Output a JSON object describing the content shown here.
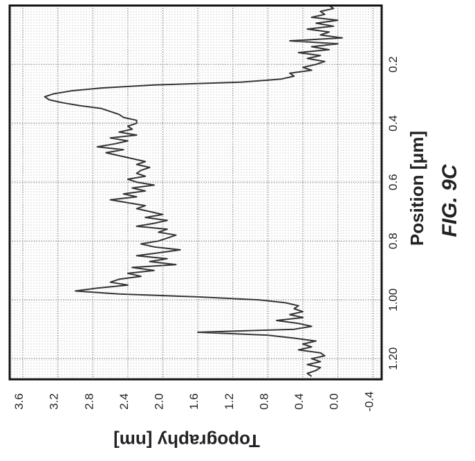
{
  "chart_data": {
    "type": "line",
    "orientation": "rotated-90-clockwise",
    "xlabel": "Position [μm]",
    "ylabel": "Topography [nm]",
    "figure_label": "FIG. 9C",
    "xlim": [
      0.0,
      1.27
    ],
    "ylim": [
      -0.5,
      3.75
    ],
    "x_ticks": [
      0.2,
      0.4,
      0.6,
      0.8,
      1.0,
      1.2
    ],
    "x_tick_labels": [
      "0.2",
      "0.4",
      "0.6",
      "0.8",
      "1.00",
      "1.20"
    ],
    "y_ticks": [
      -0.4,
      0.0,
      0.4,
      0.8,
      1.2,
      1.6,
      2.0,
      2.4,
      2.8,
      3.2,
      3.6
    ],
    "y_tick_labels": [
      "-0.4",
      "0.0",
      "0.4",
      "0.8",
      "1.2",
      "1.6",
      "2.0",
      "2.4",
      "2.8",
      "3.2",
      "3.6"
    ],
    "grid": true,
    "series": [
      {
        "color": "#333333",
        "x": [
          0.0,
          0.01,
          0.02,
          0.03,
          0.04,
          0.05,
          0.06,
          0.07,
          0.08,
          0.09,
          0.1,
          0.11,
          0.12,
          0.13,
          0.14,
          0.15,
          0.16,
          0.17,
          0.18,
          0.19,
          0.2,
          0.21,
          0.22,
          0.23,
          0.24,
          0.25,
          0.26,
          0.27,
          0.28,
          0.29,
          0.3,
          0.31,
          0.32,
          0.33,
          0.34,
          0.35,
          0.36,
          0.37,
          0.38,
          0.39,
          0.4,
          0.41,
          0.42,
          0.43,
          0.44,
          0.45,
          0.46,
          0.47,
          0.48,
          0.49,
          0.5,
          0.51,
          0.52,
          0.53,
          0.54,
          0.55,
          0.56,
          0.57,
          0.58,
          0.59,
          0.6,
          0.61,
          0.62,
          0.63,
          0.64,
          0.65,
          0.66,
          0.67,
          0.68,
          0.69,
          0.7,
          0.71,
          0.72,
          0.73,
          0.74,
          0.75,
          0.76,
          0.77,
          0.78,
          0.79,
          0.8,
          0.81,
          0.82,
          0.83,
          0.84,
          0.85,
          0.86,
          0.87,
          0.88,
          0.89,
          0.9,
          0.91,
          0.92,
          0.93,
          0.94,
          0.95,
          0.96,
          0.97,
          0.98,
          0.99,
          1.0,
          1.01,
          1.02,
          1.03,
          1.04,
          1.05,
          1.06,
          1.07,
          1.08,
          1.09,
          1.1,
          1.11,
          1.12,
          1.13,
          1.14,
          1.15,
          1.16,
          1.17,
          1.18,
          1.19,
          1.2,
          1.21,
          1.22,
          1.23,
          1.24,
          1.25,
          1.26
        ],
        "y": [
          0.1,
          0.05,
          0.2,
          0.15,
          0.3,
          0.0,
          0.25,
          0.05,
          0.35,
          0.1,
          0.2,
          -0.05,
          0.55,
          0.0,
          0.3,
          0.1,
          0.45,
          0.2,
          0.35,
          0.15,
          0.25,
          0.4,
          0.3,
          0.55,
          0.5,
          0.65,
          1.1,
          2.1,
          2.7,
          3.05,
          3.25,
          3.35,
          3.3,
          3.15,
          2.95,
          2.7,
          2.6,
          2.5,
          2.45,
          2.3,
          2.3,
          2.4,
          2.35,
          2.5,
          2.3,
          2.6,
          2.4,
          2.55,
          2.75,
          2.45,
          2.65,
          2.5,
          2.35,
          2.2,
          2.3,
          2.15,
          2.25,
          2.3,
          2.2,
          2.4,
          2.3,
          2.1,
          2.35,
          2.2,
          2.45,
          2.3,
          2.6,
          2.4,
          2.2,
          2.3,
          2.15,
          2.0,
          2.2,
          1.95,
          2.1,
          2.3,
          1.95,
          2.05,
          1.85,
          1.95,
          2.05,
          2.25,
          2.1,
          1.8,
          2.05,
          2.3,
          1.95,
          2.15,
          1.85,
          2.35,
          2.1,
          2.4,
          2.25,
          2.5,
          2.6,
          2.4,
          2.75,
          3.0,
          2.5,
          1.6,
          0.9,
          0.6,
          0.45,
          0.5,
          0.4,
          0.55,
          0.4,
          0.7,
          0.45,
          0.3,
          0.5,
          1.6,
          0.8,
          0.5,
          0.25,
          0.4,
          0.3,
          0.45,
          0.2,
          0.15,
          0.3,
          0.2,
          0.35,
          0.2,
          0.25,
          0.35,
          0.3
        ]
      }
    ]
  }
}
